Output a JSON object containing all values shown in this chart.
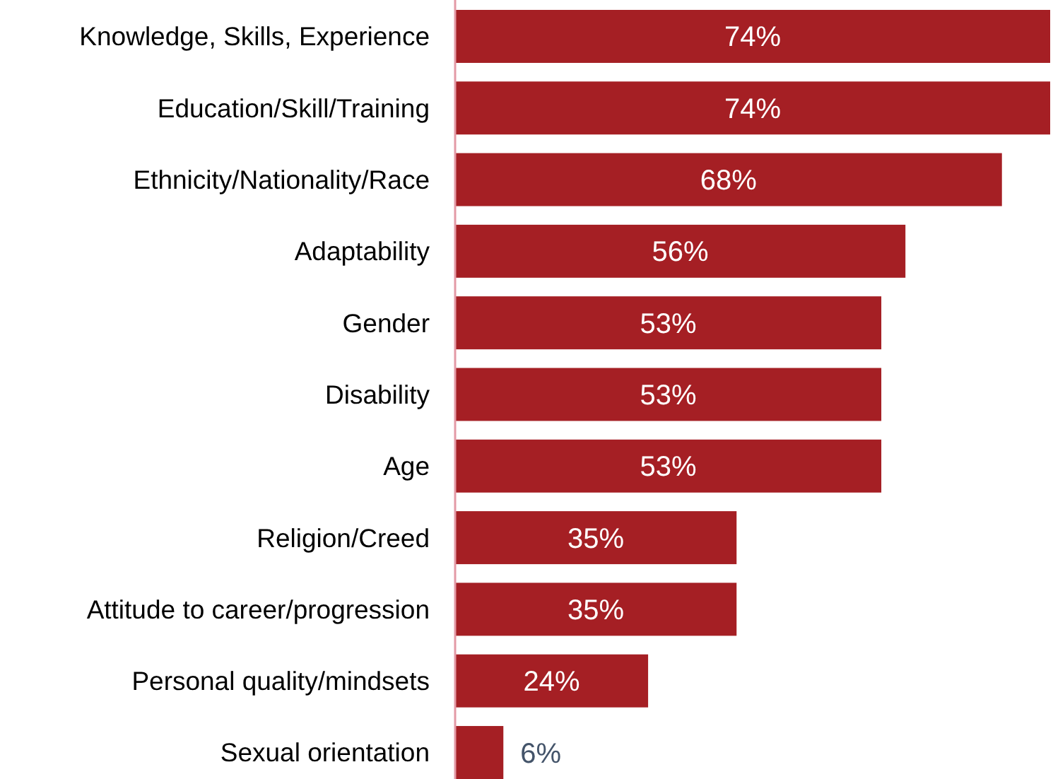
{
  "chart_data": {
    "type": "bar",
    "orientation": "horizontal",
    "categories": [
      "Knowledge, Skills, Experience",
      "Education/Skill/Training",
      "Ethnicity/Nationality/Race",
      "Adaptability",
      "Gender",
      "Disability",
      "Age",
      "Religion/Creed",
      "Attitude to career/progression",
      "Personal quality/mindsets",
      "Sexual orientation"
    ],
    "values": [
      74,
      74,
      68,
      56,
      53,
      53,
      53,
      35,
      35,
      24,
      6
    ],
    "value_labels": [
      "74%",
      "74%",
      "68%",
      "56%",
      "53%",
      "53%",
      "53%",
      "35%",
      "35%",
      "24%",
      "6%"
    ],
    "color": "#a51f24"
  }
}
